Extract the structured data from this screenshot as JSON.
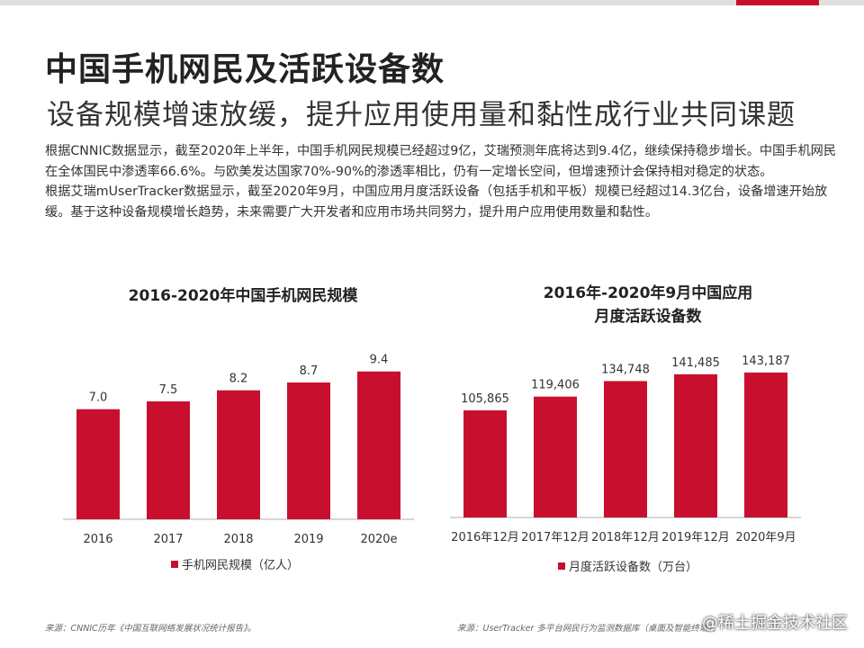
{
  "page": {
    "title": "中国手机网民及活跃设备数",
    "subtitle": "设备规模增速放缓，提升应用使用量和黏性成行业共同课题",
    "paragraphs": [
      "根据CNNIC数据显示，截至2020年上半年，中国手机网民规模已经超过9亿，艾瑞预测年底将达到9.4亿，继续保持稳步增长。中国手机网民在全体国民中渗透率66.6%。与欧美发达国家70%-90%的渗透率相比，仍有一定增长空间，但增速预计会保持相对稳定的状态。",
      "根据艾瑞mUserTracker数据显示，截至2020年9月，中国应用月度活跃设备（包括手机和平板）规模已经超过14.3亿台，设备增速开始放缓。基于这种设备规模增长趋势，未来需要广大开发者和应用市场共同努力，提升用户应用使用数量和黏性。"
    ],
    "source_left": "来源：CNNIC历年《中国互联网络发展状况统计报告》。",
    "source_right": "来源：UserTracker 多平台网民行为监测数据库（桌面及智能终端）。",
    "watermark": "@稀土掘金技术社区"
  },
  "colors": {
    "bar": "#c8102e",
    "accent": "#c8102e",
    "axis": "#333333"
  },
  "chart_data": [
    {
      "type": "bar",
      "title": "2016-2020年中国手机网民规模",
      "categories": [
        "2016",
        "2017",
        "2018",
        "2019",
        "2020e"
      ],
      "values": [
        7.0,
        7.5,
        8.2,
        8.7,
        9.4
      ],
      "value_labels": [
        "7.0",
        "7.5",
        "8.2",
        "8.7",
        "9.4"
      ],
      "legend": "手机网民规模（亿人）",
      "legend_position": "bottom",
      "ylim": [
        0,
        10.3
      ],
      "grid": false
    },
    {
      "type": "bar",
      "title": "2016年-2020年9月中国应用月度活跃设备数",
      "title_lines": [
        "2016年-2020年9月中国应用",
        "月度活跃设备数"
      ],
      "categories": [
        "2016年12月",
        "2017年12月",
        "2018年12月",
        "2019年12月",
        "2020年9月"
      ],
      "values": [
        105865,
        119406,
        134748,
        141485,
        143187
      ],
      "value_labels": [
        "105,865",
        "119,406",
        "134,748",
        "141,485",
        "143,187"
      ],
      "legend": "月度活跃设备数（万台）",
      "legend_position": "bottom",
      "ylim": [
        0,
        168000
      ],
      "grid": false
    }
  ]
}
